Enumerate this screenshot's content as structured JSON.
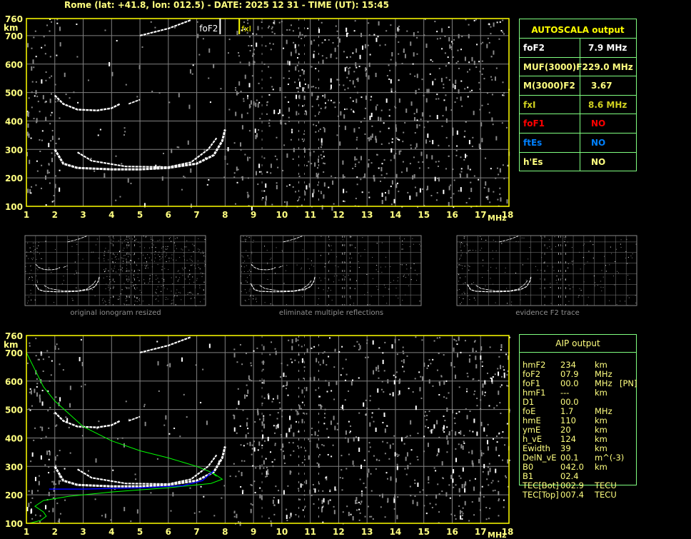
{
  "header": {
    "title": "Rome (lat: +41.8, lon: 012.5) - DATE: 2025 12 31 - TIME (UT): 15:45"
  },
  "axes": {
    "y_unit": "km",
    "x_unit": "MHz",
    "y_ticks": [
      "760",
      "700",
      "600",
      "500",
      "400",
      "300",
      "200",
      "100"
    ],
    "x_ticks": [
      "1",
      "2",
      "3",
      "4",
      "5",
      "6",
      "7",
      "8",
      "9",
      "10",
      "11",
      "12",
      "13",
      "14",
      "15",
      "16",
      "17",
      "18"
    ]
  },
  "markers": {
    "foF2_label": "foF2",
    "foF2_value": 7.9,
    "fxI_label": "fxI",
    "fxI_value": 8.6
  },
  "autoscala": {
    "title": "AUTOSCALA output",
    "rows": [
      {
        "label": "foF2",
        "value": "7.9 MHz",
        "color": "#ffffff"
      },
      {
        "label": "MUF(3000)F2",
        "value": "29.0 MHz",
        "color": "#ffff80"
      },
      {
        "label": "M(3000)F2",
        "value": "3.67",
        "color": "#ffff80"
      },
      {
        "label": "fxI",
        "value": "8.6 MHz",
        "color": "#d0d020"
      },
      {
        "label": "foF1",
        "value": "NO",
        "color": "#ff0000"
      },
      {
        "label": "ftEs",
        "value": "NO",
        "color": "#0080ff"
      },
      {
        "label": "h'Es",
        "value": "NO",
        "color": "#ffff80"
      }
    ]
  },
  "thumbnails": [
    {
      "caption": "original ionogram resized"
    },
    {
      "caption": "eliminate multiple reflections"
    },
    {
      "caption": "evidence F2 trace"
    }
  ],
  "aip": {
    "title": "AIP output",
    "rows": [
      {
        "name": "hmF2",
        "value": "234",
        "unit": "km",
        "note": ""
      },
      {
        "name": "foF2",
        "value": "07.9",
        "unit": "MHz",
        "note": ""
      },
      {
        "name": "foF1",
        "value": "00.0",
        "unit": "MHz",
        "note": "[PN]"
      },
      {
        "name": "hmF1",
        "value": "---",
        "unit": "km",
        "note": ""
      },
      {
        "name": "D1",
        "value": "00.0",
        "unit": "",
        "note": ""
      },
      {
        "name": "foE",
        "value": "1.7",
        "unit": "MHz",
        "note": ""
      },
      {
        "name": "hmE",
        "value": "110",
        "unit": "km",
        "note": ""
      },
      {
        "name": "ymE",
        "value": "20",
        "unit": "km",
        "note": ""
      },
      {
        "name": "h_vE",
        "value": "124",
        "unit": "km",
        "note": ""
      },
      {
        "name": "Ewidth",
        "value": "39",
        "unit": "km",
        "note": ""
      },
      {
        "name": "DelN_vE",
        "value": "00.1",
        "unit": "m^(-3)",
        "note": ""
      },
      {
        "name": "B0",
        "value": "042.0",
        "unit": "km",
        "note": ""
      },
      {
        "name": "B1",
        "value": "02.4",
        "unit": "",
        "note": ""
      },
      {
        "name": "TEC[Bot]",
        "value": "002.9",
        "unit": "TECU",
        "note": ""
      },
      {
        "name": "TEC[Top]",
        "value": "007.4",
        "unit": "TECU",
        "note": ""
      }
    ]
  },
  "colors": {
    "axis": "#ffff00",
    "grid": "#808080",
    "table_border": "#80ff80",
    "profile": "#00ff00",
    "fit": "#0000ff"
  }
}
